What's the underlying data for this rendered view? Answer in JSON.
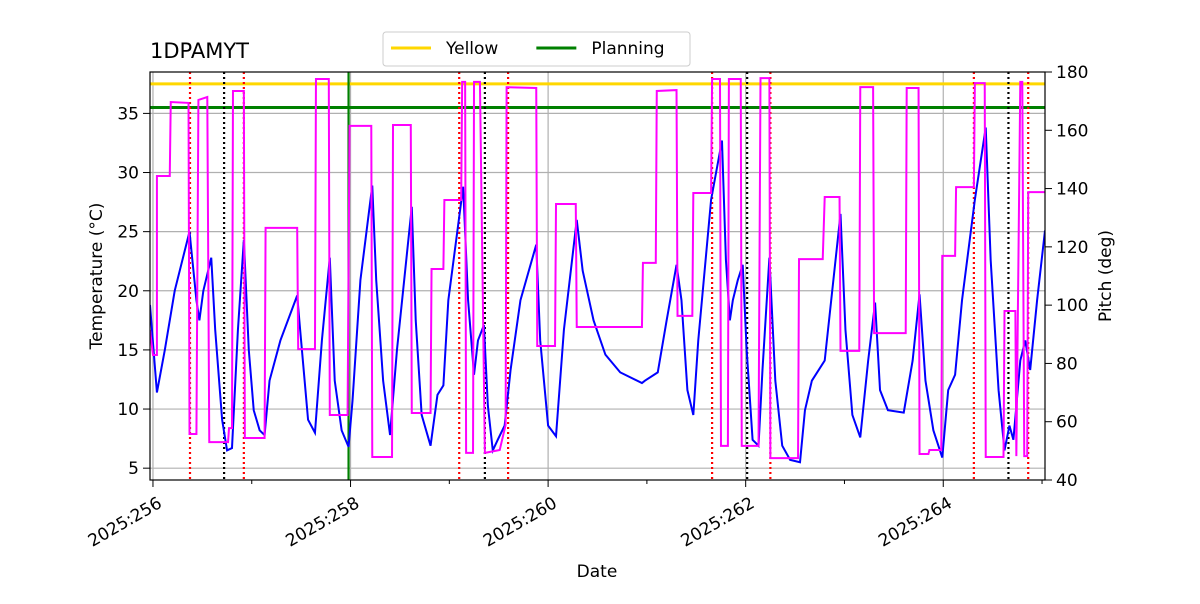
{
  "chart_data": {
    "type": "line",
    "title": "1DPAMYT",
    "xlabel": "Date",
    "ylabel": "Temperature (°C)",
    "y2label": "Pitch (deg)",
    "y2color": "magenta",
    "grid": true,
    "legend_loc": "top",
    "xlim": [
      255.97,
      265.03
    ],
    "xticks": [
      {
        "value": 256,
        "label": "2025:256"
      },
      {
        "value": 258,
        "label": "2025:258"
      },
      {
        "value": 260,
        "label": "2025:260"
      },
      {
        "value": 262,
        "label": "2025:262"
      },
      {
        "value": 264,
        "label": "2025:264"
      }
    ],
    "xminorticks": [
      257,
      259,
      261,
      263,
      265
    ],
    "ylim": [
      4,
      38.5
    ],
    "yticks": [
      5,
      10,
      15,
      20,
      25,
      30,
      35
    ],
    "y2lim": [
      40,
      180
    ],
    "y2ticks": [
      40,
      60,
      80,
      100,
      120,
      140,
      160,
      180
    ],
    "hlines": [
      {
        "name": "Yellow",
        "color": "gold",
        "value": 37.5
      },
      {
        "name": "Planning",
        "color": "green",
        "value": 35.5
      }
    ],
    "vlines": [
      {
        "color": "green",
        "style": "solid",
        "x": [
          257.98
        ]
      },
      {
        "color": "red",
        "style": "dotted",
        "x": [
          256.375,
          256.92,
          259.1,
          259.595,
          261.66,
          262.25,
          264.31,
          264.86
        ]
      },
      {
        "color": "black",
        "style": "dotted",
        "x": [
          256.72,
          259.36,
          262.015,
          264.66
        ]
      }
    ],
    "lines": [
      {
        "color": "blue",
        "x": [
          255.97,
          256.04,
          256.12,
          256.22,
          256.37,
          256.44,
          256.47,
          256.51,
          256.59,
          256.63,
          256.7,
          256.75,
          256.8,
          256.86,
          256.92,
          256.97,
          257.02,
          257.08,
          257.13,
          257.18,
          257.29,
          257.46,
          257.49,
          257.57,
          257.64,
          257.71,
          257.79,
          257.84,
          257.91,
          257.98,
          258.02,
          258.1,
          258.22,
          258.26,
          258.33,
          258.4,
          258.47,
          258.62,
          258.66,
          258.72,
          258.81,
          258.88,
          258.94,
          258.99,
          259.14,
          259.19,
          259.25,
          259.29,
          259.35,
          259.39,
          259.44,
          259.49,
          259.56,
          259.62,
          259.72,
          259.88,
          259.92,
          260.0,
          260.08,
          260.16,
          260.29,
          260.35,
          260.46,
          260.58,
          260.73,
          260.95,
          260.98,
          261.11,
          261.2,
          261.3,
          261.35,
          261.41,
          261.47,
          261.52,
          261.65,
          261.76,
          261.8,
          261.84,
          261.87,
          261.92,
          261.97,
          262.01,
          262.07,
          262.13,
          262.17,
          262.24,
          262.3,
          262.37,
          262.45,
          262.55,
          262.6,
          262.67,
          262.8,
          262.96,
          263.01,
          263.08,
          263.16,
          263.24,
          263.31,
          263.36,
          263.44,
          263.6,
          263.69,
          263.76,
          263.82,
          263.9,
          263.99,
          264.05,
          264.12,
          264.19,
          264.32,
          264.43,
          264.48,
          264.56,
          264.62,
          264.67,
          264.71,
          264.78,
          264.83,
          264.88,
          264.95,
          265.03
        ],
        "values": [
          18.8,
          11.4,
          15.0,
          20.0,
          25.0,
          19.2,
          17.5,
          20.0,
          22.8,
          16.7,
          9.1,
          6.5,
          6.7,
          16.7,
          24.3,
          15.0,
          9.9,
          8.2,
          7.8,
          12.4,
          15.8,
          19.6,
          16.7,
          9.1,
          8.0,
          15.8,
          22.8,
          12.4,
          8.2,
          6.8,
          10.7,
          20.9,
          28.9,
          20.9,
          12.4,
          7.8,
          15.0,
          27.1,
          17.5,
          9.5,
          6.9,
          11.2,
          12.0,
          19.2,
          28.8,
          19.2,
          12.9,
          15.8,
          17.1,
          10.3,
          6.5,
          7.4,
          8.6,
          13.3,
          19.2,
          23.9,
          15.8,
          8.6,
          7.7,
          16.7,
          26.0,
          21.7,
          17.5,
          14.6,
          13.1,
          12.2,
          12.4,
          13.1,
          17.5,
          22.2,
          19.2,
          11.6,
          9.5,
          15.8,
          27.7,
          32.7,
          22.6,
          17.5,
          19.2,
          20.9,
          22.2,
          15.0,
          7.4,
          6.9,
          13.3,
          22.8,
          12.4,
          6.9,
          5.7,
          5.5,
          9.9,
          12.4,
          14.1,
          26.5,
          16.7,
          9.5,
          7.6,
          14.1,
          19.0,
          11.6,
          9.9,
          9.7,
          14.1,
          19.7,
          12.4,
          8.2,
          5.9,
          11.6,
          12.9,
          19.2,
          27.7,
          33.8,
          22.6,
          11.6,
          6.5,
          8.6,
          7.4,
          14.1,
          15.8,
          13.3,
          19.2,
          25.1
        ]
      },
      {
        "color": "magenta",
        "axis": "y2",
        "x": [
          255.97,
          256.0,
          256.04,
          256.04,
          256.17,
          256.18,
          256.36,
          256.37,
          256.44,
          256.46,
          256.55,
          256.57,
          256.76,
          256.77,
          256.8,
          256.81,
          256.92,
          256.93,
          257.13,
          257.14,
          257.46,
          257.47,
          257.64,
          257.65,
          257.78,
          257.79,
          257.97,
          257.99,
          258.21,
          258.22,
          258.42,
          258.43,
          258.61,
          258.62,
          258.81,
          258.82,
          258.94,
          258.95,
          259.12,
          259.13,
          259.16,
          259.17,
          259.24,
          259.25,
          259.31,
          259.36,
          259.51,
          259.57,
          259.58,
          259.88,
          259.89,
          260.07,
          260.08,
          260.28,
          260.29,
          260.95,
          260.96,
          261.09,
          261.1,
          261.3,
          261.31,
          261.46,
          261.47,
          261.65,
          261.66,
          261.74,
          261.75,
          261.82,
          261.83,
          261.95,
          261.96,
          262.13,
          262.15,
          262.24,
          262.25,
          262.53,
          262.54,
          262.78,
          262.8,
          262.95,
          262.96,
          263.15,
          263.16,
          263.29,
          263.3,
          263.62,
          263.63,
          263.75,
          263.76,
          263.85,
          263.86,
          263.98,
          263.99,
          264.12,
          264.13,
          264.31,
          264.32,
          264.42,
          264.43,
          264.61,
          264.62,
          264.73,
          264.74,
          264.78,
          264.8,
          264.82,
          264.85,
          264.86,
          265.03
        ],
        "values": [
          91.5,
          82.9,
          82.9,
          144.3,
          144.3,
          169.7,
          169.4,
          55.8,
          55.8,
          170.4,
          171.4,
          53.0,
          53.0,
          57.8,
          57.8,
          173.5,
          173.5,
          54.4,
          54.4,
          126.5,
          126.5,
          84.9,
          84.9,
          177.6,
          177.6,
          62.3,
          62.3,
          161.5,
          161.5,
          47.9,
          47.9,
          161.8,
          161.8,
          63.0,
          63.0,
          112.4,
          112.4,
          136.1,
          136.1,
          176.6,
          176.6,
          49.3,
          49.3,
          176.6,
          176.6,
          49.3,
          50.3,
          58.9,
          174.8,
          174.5,
          86.0,
          86.0,
          134.7,
          134.7,
          92.5,
          92.5,
          114.5,
          114.5,
          173.5,
          173.8,
          96.3,
          96.3,
          138.5,
          138.5,
          177.6,
          177.6,
          51.7,
          51.7,
          177.6,
          177.6,
          51.7,
          51.7,
          177.9,
          177.9,
          47.5,
          47.5,
          115.8,
          115.8,
          137.1,
          137.1,
          84.3,
          84.3,
          174.8,
          174.8,
          90.4,
          90.4,
          174.5,
          174.5,
          48.9,
          48.9,
          50.3,
          50.3,
          116.9,
          116.9,
          140.5,
          140.5,
          176.2,
          176.2,
          47.9,
          47.9,
          98.0,
          98.0,
          48.2,
          176.6,
          176.6,
          48.2,
          48.2,
          138.8,
          138.8
        ]
      }
    ]
  }
}
